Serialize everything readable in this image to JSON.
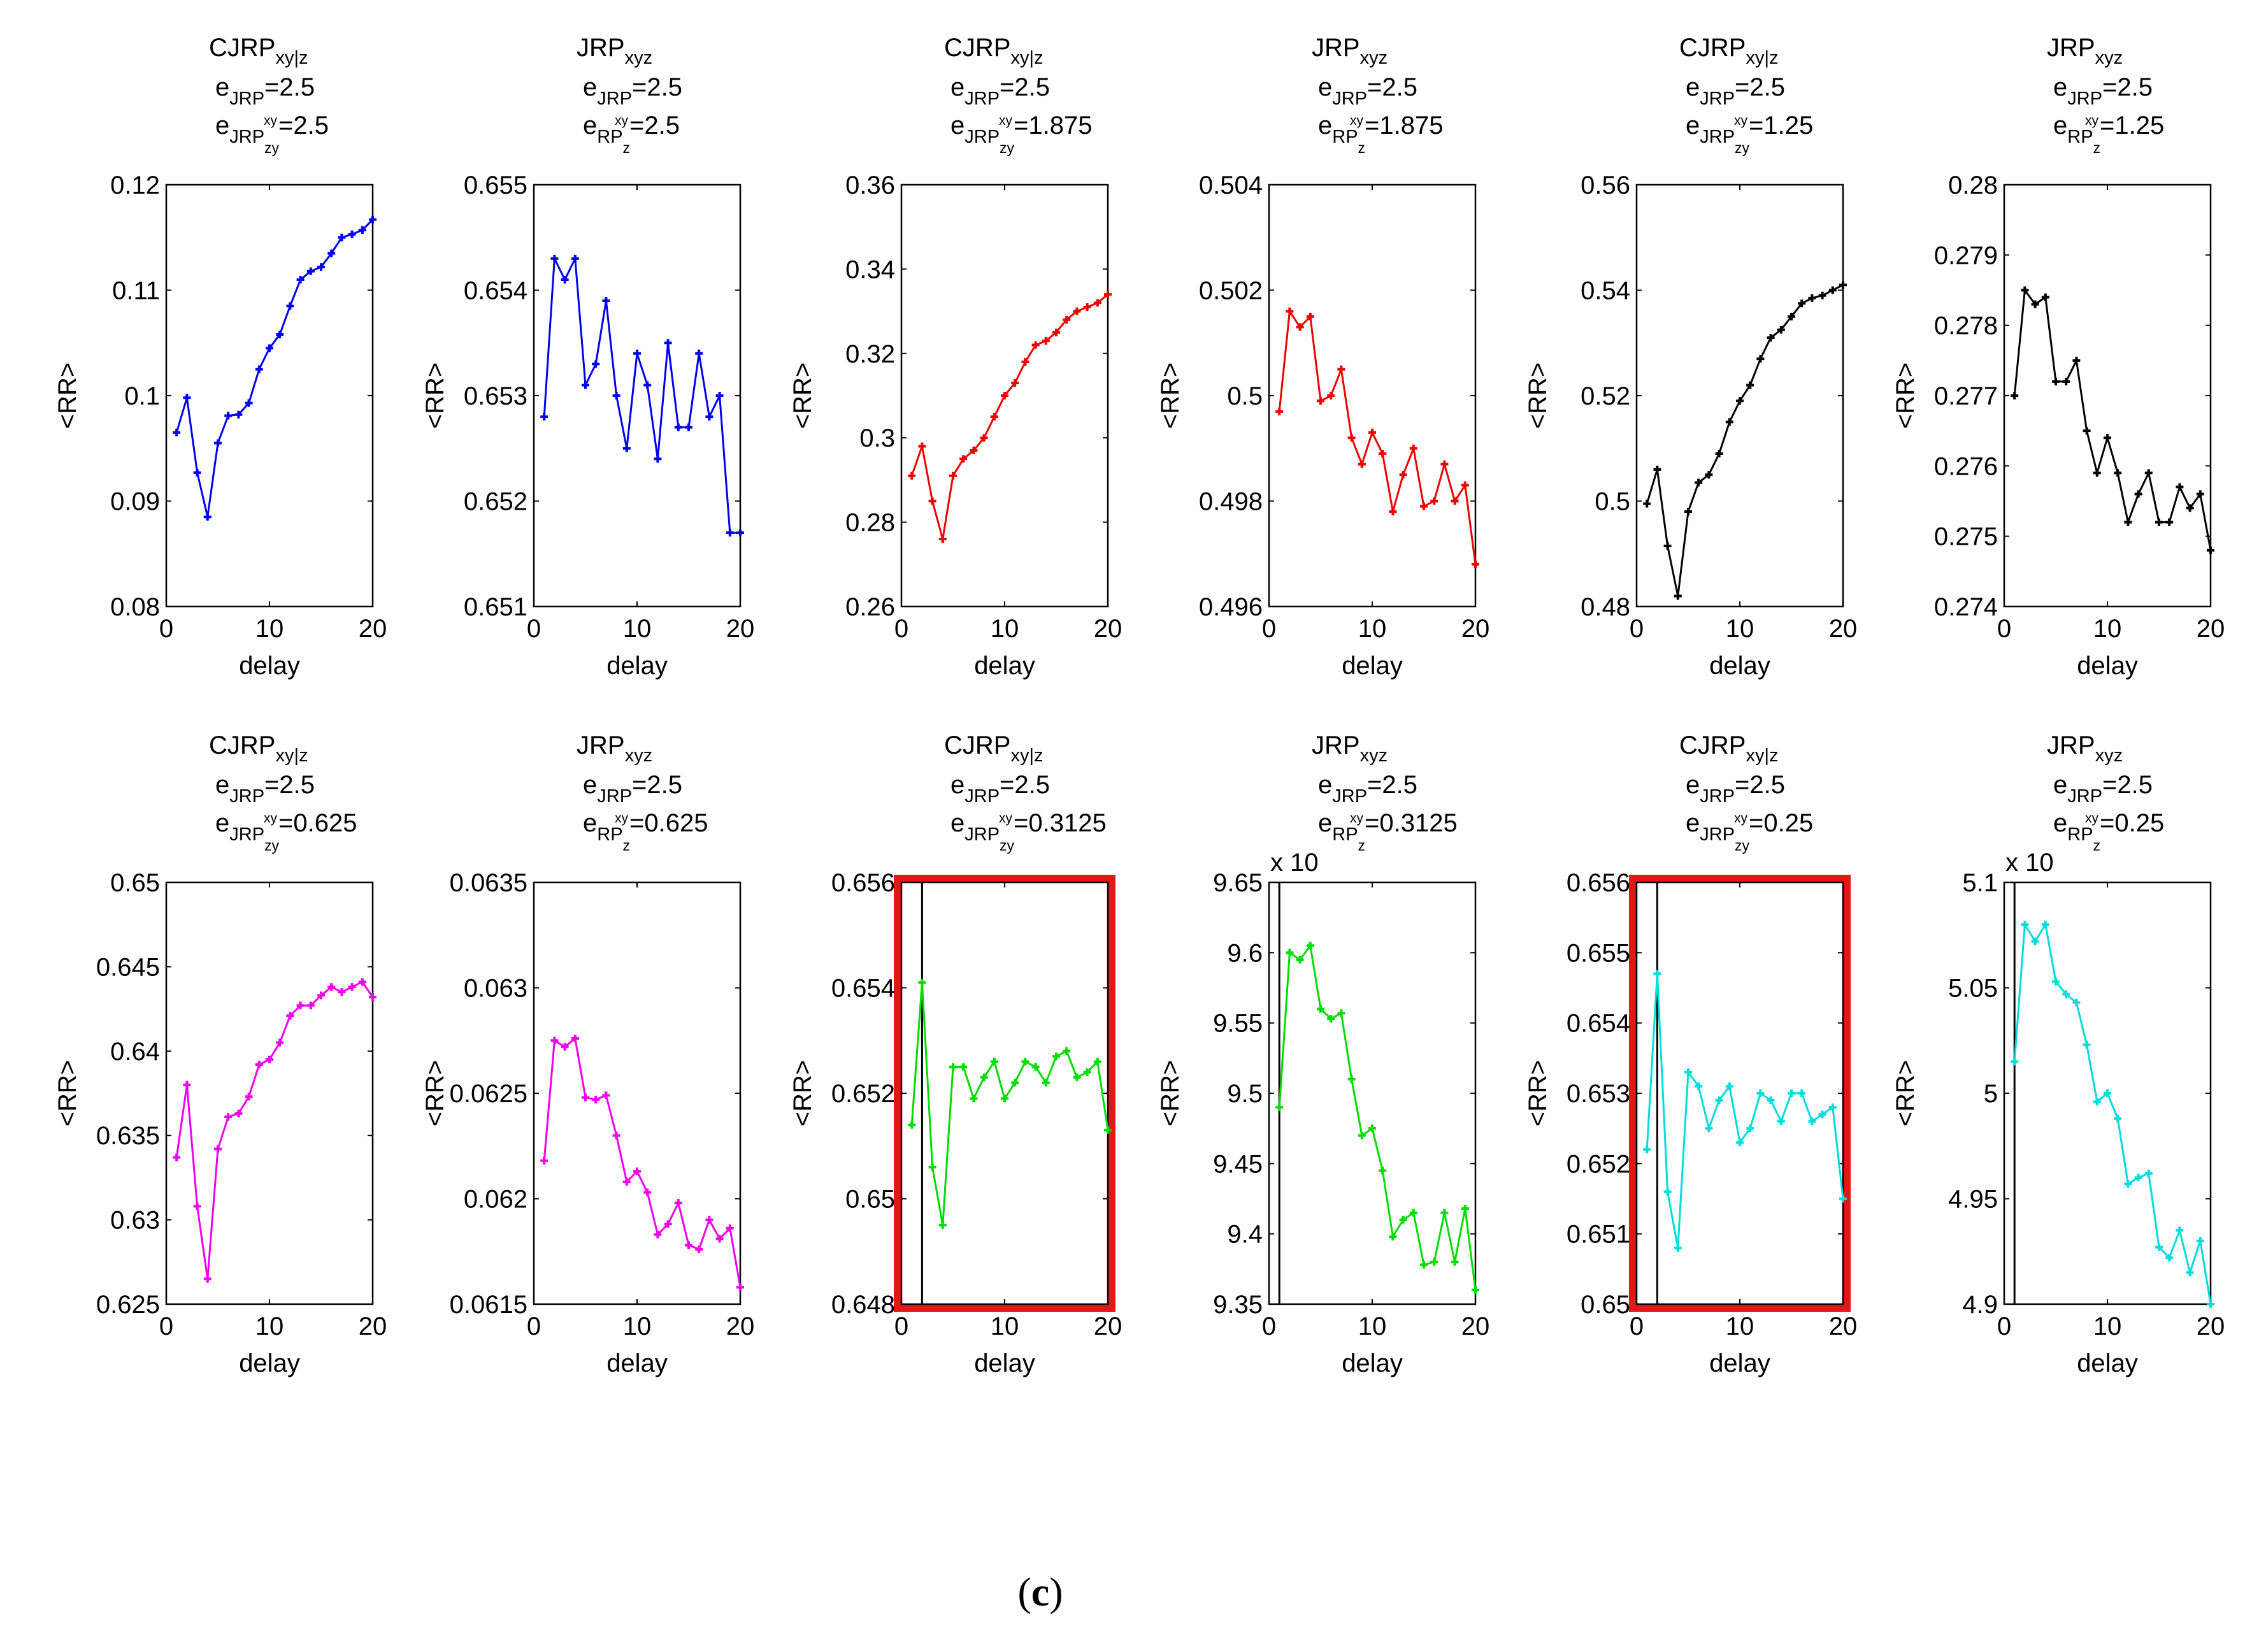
{
  "caption": {
    "open": "(",
    "letter": "c",
    "close": ")"
  },
  "axis": {
    "ylabel": "<RR>",
    "xlabel": "delay"
  },
  "colors": {
    "highlight": "#e01818",
    "vline": "#000000"
  },
  "chart_data": [
    {
      "type": "line",
      "color": "#0000ee",
      "title": {
        "main": "CJRP",
        "main_sub": "xy|z",
        "l2_e": "e",
        "l2_sub": "JRP",
        "l2_sub2": "",
        "l2_val": "=2.5",
        "l3_e": "e",
        "l3_sub": "JRP",
        "l3_sub2": "zy",
        "l3_sup": "xy",
        "l3_val": "=2.5"
      },
      "xlim": [
        0,
        20
      ],
      "ylim": [
        0.08,
        0.12
      ],
      "xticks": [
        0,
        10,
        20
      ],
      "xtick_labels": [
        "0",
        "10",
        "20"
      ],
      "yticks": [
        0.08,
        0.09,
        0.1,
        0.11,
        0.12
      ],
      "ytick_labels": [
        "0.08",
        "0.09",
        "0.1",
        "0.11",
        "0.12"
      ],
      "x": [
        1,
        2,
        3,
        4,
        5,
        6,
        7,
        8,
        9,
        10,
        11,
        12,
        13,
        14,
        15,
        16,
        17,
        18,
        19,
        20
      ],
      "y": [
        0.0965,
        0.0998,
        0.0927,
        0.0885,
        0.0955,
        0.0981,
        0.0982,
        0.0993,
        0.1025,
        0.1045,
        0.1058,
        0.1085,
        0.111,
        0.1118,
        0.1122,
        0.1135,
        0.115,
        0.1153,
        0.1157,
        0.1167
      ],
      "exponent": "",
      "highlight": false,
      "vline": null
    },
    {
      "type": "line",
      "color": "#0000ee",
      "title": {
        "main": "JRP",
        "main_sub": "xyz",
        "l2_e": "e",
        "l2_sub": "JRP",
        "l2_sub2": "",
        "l2_val": "=2.5",
        "l3_e": "e",
        "l3_sub": "RP",
        "l3_sub2": "z",
        "l3_sup": "xy",
        "l3_val": "=2.5"
      },
      "xlim": [
        0,
        20
      ],
      "ylim": [
        0.651,
        0.655
      ],
      "xticks": [
        0,
        10,
        20
      ],
      "xtick_labels": [
        "0",
        "10",
        "20"
      ],
      "yticks": [
        0.651,
        0.652,
        0.653,
        0.654,
        0.655
      ],
      "ytick_labels": [
        "0.651",
        "0.652",
        "0.653",
        "0.654",
        "0.655"
      ],
      "x": [
        1,
        2,
        3,
        4,
        5,
        6,
        7,
        8,
        9,
        10,
        11,
        12,
        13,
        14,
        15,
        16,
        17,
        18,
        19,
        20
      ],
      "y": [
        0.6528,
        0.6543,
        0.6541,
        0.6543,
        0.6531,
        0.6533,
        0.6539,
        0.653,
        0.6525,
        0.6534,
        0.6531,
        0.6524,
        0.6535,
        0.6527,
        0.6527,
        0.6534,
        0.6528,
        0.653,
        0.6517,
        0.6517
      ],
      "exponent": "",
      "highlight": false,
      "vline": null
    },
    {
      "type": "line",
      "color": "#ee0000",
      "title": {
        "main": "CJRP",
        "main_sub": "xy|z",
        "l2_e": "e",
        "l2_sub": "JRP",
        "l2_sub2": "",
        "l2_val": "=2.5",
        "l3_e": "e",
        "l3_sub": "JRP",
        "l3_sub2": "zy",
        "l3_sup": "xy",
        "l3_val": "=1.875"
      },
      "xlim": [
        0,
        20
      ],
      "ylim": [
        0.26,
        0.36
      ],
      "xticks": [
        0,
        10,
        20
      ],
      "xtick_labels": [
        "0",
        "10",
        "20"
      ],
      "yticks": [
        0.26,
        0.28,
        0.3,
        0.32,
        0.34,
        0.36
      ],
      "ytick_labels": [
        "0.26",
        "0.28",
        "0.3",
        "0.32",
        "0.34",
        "0.36"
      ],
      "x": [
        1,
        2,
        3,
        4,
        5,
        6,
        7,
        8,
        9,
        10,
        11,
        12,
        13,
        14,
        15,
        16,
        17,
        18,
        19,
        20
      ],
      "y": [
        0.291,
        0.298,
        0.285,
        0.276,
        0.291,
        0.295,
        0.297,
        0.3,
        0.305,
        0.31,
        0.313,
        0.318,
        0.322,
        0.323,
        0.325,
        0.328,
        0.33,
        0.331,
        0.332,
        0.334
      ],
      "exponent": "",
      "highlight": false,
      "vline": null
    },
    {
      "type": "line",
      "color": "#ee0000",
      "title": {
        "main": "JRP",
        "main_sub": "xyz",
        "l2_e": "e",
        "l2_sub": "JRP",
        "l2_sub2": "",
        "l2_val": "=2.5",
        "l3_e": "e",
        "l3_sub": "RP",
        "l3_sub2": "z",
        "l3_sup": "xy",
        "l3_val": "=1.875"
      },
      "xlim": [
        0,
        20
      ],
      "ylim": [
        0.496,
        0.504
      ],
      "xticks": [
        0,
        10,
        20
      ],
      "xtick_labels": [
        "0",
        "10",
        "20"
      ],
      "yticks": [
        0.496,
        0.498,
        0.5,
        0.502,
        0.504
      ],
      "ytick_labels": [
        "0.496",
        "0.498",
        "0.5",
        "0.502",
        "0.504"
      ],
      "x": [
        1,
        2,
        3,
        4,
        5,
        6,
        7,
        8,
        9,
        10,
        11,
        12,
        13,
        14,
        15,
        16,
        17,
        18,
        19,
        20
      ],
      "y": [
        0.4997,
        0.5016,
        0.5013,
        0.5015,
        0.4999,
        0.5,
        0.5005,
        0.4992,
        0.4987,
        0.4993,
        0.4989,
        0.4978,
        0.4985,
        0.499,
        0.4979,
        0.498,
        0.4987,
        0.498,
        0.4983,
        0.4968
      ],
      "exponent": "",
      "highlight": false,
      "vline": null
    },
    {
      "type": "line",
      "color": "#000000",
      "title": {
        "main": "CJRP",
        "main_sub": "xy|z",
        "l2_e": "e",
        "l2_sub": "JRP",
        "l2_sub2": "",
        "l2_val": "=2.5",
        "l3_e": "e",
        "l3_sub": "JRP",
        "l3_sub2": "zy",
        "l3_sup": "xy",
        "l3_val": "=1.25"
      },
      "xlim": [
        0,
        20
      ],
      "ylim": [
        0.48,
        0.56
      ],
      "xticks": [
        0,
        10,
        20
      ],
      "xtick_labels": [
        "0",
        "10",
        "20"
      ],
      "yticks": [
        0.48,
        0.5,
        0.52,
        0.54,
        0.56
      ],
      "ytick_labels": [
        "0.48",
        "0.5",
        "0.52",
        "0.54",
        "0.56"
      ],
      "x": [
        1,
        2,
        3,
        4,
        5,
        6,
        7,
        8,
        9,
        10,
        11,
        12,
        13,
        14,
        15,
        16,
        17,
        18,
        19,
        20
      ],
      "y": [
        0.4995,
        0.506,
        0.4915,
        0.482,
        0.498,
        0.5035,
        0.505,
        0.509,
        0.515,
        0.519,
        0.522,
        0.527,
        0.531,
        0.5325,
        0.535,
        0.5375,
        0.5385,
        0.539,
        0.54,
        0.541
      ],
      "exponent": "",
      "highlight": false,
      "vline": null
    },
    {
      "type": "line",
      "color": "#000000",
      "title": {
        "main": "JRP",
        "main_sub": "xyz",
        "l2_e": "e",
        "l2_sub": "JRP",
        "l2_sub2": "",
        "l2_val": "=2.5",
        "l3_e": "e",
        "l3_sub": "RP",
        "l3_sub2": "z",
        "l3_sup": "xy",
        "l3_val": "=1.25"
      },
      "xlim": [
        0,
        20
      ],
      "ylim": [
        0.274,
        0.28
      ],
      "xticks": [
        0,
        10,
        20
      ],
      "xtick_labels": [
        "0",
        "10",
        "20"
      ],
      "yticks": [
        0.274,
        0.275,
        0.276,
        0.277,
        0.278,
        0.279,
        0.28
      ],
      "ytick_labels": [
        "0.274",
        "0.275",
        "0.276",
        "0.277",
        "0.278",
        "0.279",
        "0.28"
      ],
      "x": [
        1,
        2,
        3,
        4,
        5,
        6,
        7,
        8,
        9,
        10,
        11,
        12,
        13,
        14,
        15,
        16,
        17,
        18,
        19,
        20
      ],
      "y": [
        0.277,
        0.2785,
        0.2783,
        0.2784,
        0.2772,
        0.2772,
        0.2775,
        0.2765,
        0.2759,
        0.2764,
        0.2759,
        0.2752,
        0.2756,
        0.2759,
        0.2752,
        0.2752,
        0.2757,
        0.2754,
        0.2756,
        0.2748
      ],
      "exponent": "",
      "highlight": false,
      "vline": null
    },
    {
      "type": "line",
      "color": "#ee00ee",
      "title": {
        "main": "CJRP",
        "main_sub": "xy|z",
        "l2_e": "e",
        "l2_sub": "JRP",
        "l2_sub2": "",
        "l2_val": "=2.5",
        "l3_e": "e",
        "l3_sub": "JRP",
        "l3_sub2": "zy",
        "l3_sup": "xy",
        "l3_val": "=0.625"
      },
      "xlim": [
        0,
        20
      ],
      "ylim": [
        0.625,
        0.65
      ],
      "xticks": [
        0,
        10,
        20
      ],
      "xtick_labels": [
        "0",
        "10",
        "20"
      ],
      "yticks": [
        0.625,
        0.63,
        0.635,
        0.64,
        0.645,
        0.65
      ],
      "ytick_labels": [
        "0.625",
        "0.63",
        "0.635",
        "0.64",
        "0.645",
        "0.65"
      ],
      "x": [
        1,
        2,
        3,
        4,
        5,
        6,
        7,
        8,
        9,
        10,
        11,
        12,
        13,
        14,
        15,
        16,
        17,
        18,
        19,
        20
      ],
      "y": [
        0.6337,
        0.638,
        0.6308,
        0.6265,
        0.6342,
        0.6361,
        0.6363,
        0.6373,
        0.6392,
        0.6395,
        0.6405,
        0.6421,
        0.6427,
        0.6427,
        0.6433,
        0.6438,
        0.6435,
        0.6438,
        0.6441,
        0.6432
      ],
      "exponent": "",
      "highlight": false,
      "vline": null
    },
    {
      "type": "line",
      "color": "#ee00ee",
      "title": {
        "main": "JRP",
        "main_sub": "xyz",
        "l2_e": "e",
        "l2_sub": "JRP",
        "l2_sub2": "",
        "l2_val": "=2.5",
        "l3_e": "e",
        "l3_sub": "RP",
        "l3_sub2": "z",
        "l3_sup": "xy",
        "l3_val": "=0.625"
      },
      "xlim": [
        0,
        20
      ],
      "ylim": [
        0.0615,
        0.0635
      ],
      "xticks": [
        0,
        10,
        20
      ],
      "xtick_labels": [
        "0",
        "10",
        "20"
      ],
      "yticks": [
        0.0615,
        0.062,
        0.0625,
        0.063,
        0.0635
      ],
      "ytick_labels": [
        "0.0615",
        "0.062",
        "0.0625",
        "0.063",
        "0.0635"
      ],
      "x": [
        1,
        2,
        3,
        4,
        5,
        6,
        7,
        8,
        9,
        10,
        11,
        12,
        13,
        14,
        15,
        16,
        17,
        18,
        19,
        20
      ],
      "y": [
        0.06218,
        0.06275,
        0.06272,
        0.06276,
        0.06248,
        0.06247,
        0.06249,
        0.0623,
        0.06208,
        0.06213,
        0.06203,
        0.06183,
        0.06188,
        0.06198,
        0.06178,
        0.06176,
        0.0619,
        0.06181,
        0.06186,
        0.06158
      ],
      "exponent": "",
      "highlight": false,
      "vline": null
    },
    {
      "type": "line",
      "color": "#00dd00",
      "title": {
        "main": "CJRP",
        "main_sub": "xy|z",
        "l2_e": "e",
        "l2_sub": "JRP",
        "l2_sub2": "",
        "l2_val": "=2.5",
        "l3_e": "e",
        "l3_sub": "JRP",
        "l3_sub2": "zy",
        "l3_sup": "xy",
        "l3_val": "=0.3125"
      },
      "xlim": [
        0,
        20
      ],
      "ylim": [
        0.648,
        0.656
      ],
      "xticks": [
        0,
        10,
        20
      ],
      "xtick_labels": [
        "0",
        "10",
        "20"
      ],
      "yticks": [
        0.648,
        0.65,
        0.652,
        0.654,
        0.656
      ],
      "ytick_labels": [
        "0.648",
        "0.65",
        "0.652",
        "0.654",
        "0.656"
      ],
      "x": [
        1,
        2,
        3,
        4,
        5,
        6,
        7,
        8,
        9,
        10,
        11,
        12,
        13,
        14,
        15,
        16,
        17,
        18,
        19,
        20
      ],
      "y": [
        0.6514,
        0.6541,
        0.6506,
        0.6495,
        0.6525,
        0.6525,
        0.6519,
        0.6523,
        0.6526,
        0.6519,
        0.6522,
        0.6526,
        0.6525,
        0.6522,
        0.6527,
        0.6528,
        0.6523,
        0.6524,
        0.6526,
        0.6513
      ],
      "exponent": "",
      "highlight": true,
      "vline": 2
    },
    {
      "type": "line",
      "color": "#00dd00",
      "title": {
        "main": "JRP",
        "main_sub": "xyz",
        "l2_e": "e",
        "l2_sub": "JRP",
        "l2_sub2": "",
        "l2_val": "=2.5",
        "l3_e": "e",
        "l3_sub": "RP",
        "l3_sub2": "z",
        "l3_sup": "xy",
        "l3_val": "=0.3125"
      },
      "xlim": [
        0,
        20
      ],
      "ylim": [
        9.35,
        9.65
      ],
      "xticks": [
        0,
        10,
        20
      ],
      "xtick_labels": [
        "0",
        "10",
        "20"
      ],
      "yticks": [
        9.35,
        9.4,
        9.45,
        9.5,
        9.55,
        9.6,
        9.65
      ],
      "ytick_labels": [
        "9.35",
        "9.4",
        "9.45",
        "9.5",
        "9.55",
        "9.6",
        "9.65"
      ],
      "x": [
        1,
        2,
        3,
        4,
        5,
        6,
        7,
        8,
        9,
        10,
        11,
        12,
        13,
        14,
        15,
        16,
        17,
        18,
        19,
        20
      ],
      "y": [
        9.49,
        9.6,
        9.595,
        9.605,
        9.56,
        9.553,
        9.557,
        9.51,
        9.47,
        9.475,
        9.445,
        9.398,
        9.41,
        9.415,
        9.378,
        9.38,
        9.415,
        9.38,
        9.418,
        9.36
      ],
      "exponent": "x 10",
      "highlight": false,
      "vline": 1
    },
    {
      "type": "line",
      "color": "#00dddd",
      "title": {
        "main": "CJRP",
        "main_sub": "xy|z",
        "l2_e": "e",
        "l2_sub": "JRP",
        "l2_sub2": "",
        "l2_val": "=2.5",
        "l3_e": "e",
        "l3_sub": "JRP",
        "l3_sub2": "zy",
        "l3_sup": "xy",
        "l3_val": "=0.25"
      },
      "xlim": [
        0,
        20
      ],
      "ylim": [
        0.65,
        0.656
      ],
      "xticks": [
        0,
        10,
        20
      ],
      "xtick_labels": [
        "0",
        "10",
        "20"
      ],
      "yticks": [
        0.65,
        0.651,
        0.652,
        0.653,
        0.654,
        0.655,
        0.656
      ],
      "ytick_labels": [
        "0.65",
        "0.651",
        "0.652",
        "0.653",
        "0.654",
        "0.655",
        "0.656"
      ],
      "x": [
        1,
        2,
        3,
        4,
        5,
        6,
        7,
        8,
        9,
        10,
        11,
        12,
        13,
        14,
        15,
        16,
        17,
        18,
        19,
        20
      ],
      "y": [
        0.6522,
        0.6547,
        0.6516,
        0.6508,
        0.6533,
        0.6531,
        0.6525,
        0.6529,
        0.6531,
        0.6523,
        0.6525,
        0.653,
        0.6529,
        0.6526,
        0.653,
        0.653,
        0.6526,
        0.6527,
        0.6528,
        0.6515
      ],
      "exponent": "",
      "highlight": true,
      "vline": 2
    },
    {
      "type": "line",
      "color": "#00dddd",
      "title": {
        "main": "JRP",
        "main_sub": "xyz",
        "l2_e": "e",
        "l2_sub": "JRP",
        "l2_sub2": "",
        "l2_val": "=2.5",
        "l3_e": "e",
        "l3_sub": "RP",
        "l3_sub2": "z",
        "l3_sup": "xy",
        "l3_val": "=0.25"
      },
      "xlim": [
        0,
        20
      ],
      "ylim": [
        4.9,
        5.1
      ],
      "xticks": [
        0,
        10,
        20
      ],
      "xtick_labels": [
        "0",
        "10",
        "20"
      ],
      "yticks": [
        4.9,
        4.95,
        5,
        5.05,
        5.1
      ],
      "ytick_labels": [
        "4.9",
        "4.95",
        "5",
        "5.05",
        "5.1"
      ],
      "x": [
        1,
        2,
        3,
        4,
        5,
        6,
        7,
        8,
        9,
        10,
        11,
        12,
        13,
        14,
        15,
        16,
        17,
        18,
        19,
        20
      ],
      "y": [
        5.015,
        5.08,
        5.072,
        5.08,
        5.053,
        5.047,
        5.043,
        5.023,
        4.996,
        5.0,
        4.988,
        4.957,
        4.96,
        4.962,
        4.927,
        4.922,
        4.935,
        4.915,
        4.93,
        4.9
      ],
      "exponent": "x 10",
      "highlight": false,
      "vline": 1
    }
  ]
}
